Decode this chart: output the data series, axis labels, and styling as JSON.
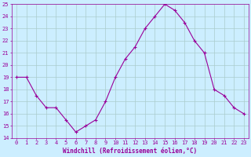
{
  "x": [
    0,
    1,
    2,
    3,
    4,
    5,
    6,
    7,
    8,
    9,
    10,
    11,
    12,
    13,
    14,
    15,
    16,
    17,
    18,
    19,
    20,
    21,
    22,
    23
  ],
  "y": [
    19,
    19,
    17.5,
    16.5,
    16.5,
    15.5,
    14.5,
    15,
    15.5,
    17,
    19,
    20.5,
    21.5,
    23,
    24,
    25,
    24.5,
    23.5,
    22,
    21,
    18,
    17.5,
    16.5,
    16
  ],
  "line_color": "#990099",
  "marker": "+",
  "marker_size": 3,
  "background_color": "#cceeff",
  "grid_color": "#aacccc",
  "xlabel": "Windchill (Refroidissement éolien,°C)",
  "xlabel_color": "#990099",
  "tick_color": "#990099",
  "ylim": [
    14,
    25
  ],
  "yticks": [
    14,
    15,
    16,
    17,
    18,
    19,
    20,
    21,
    22,
    23,
    24,
    25
  ],
  "xticks": [
    0,
    1,
    2,
    3,
    4,
    5,
    6,
    7,
    8,
    9,
    10,
    11,
    12,
    13,
    14,
    15,
    16,
    17,
    18,
    19,
    20,
    21,
    22,
    23
  ],
  "axis_color": "#990099",
  "tick_fontsize": 5.0,
  "xlabel_fontsize": 5.5,
  "linewidth": 0.8,
  "markeredgewidth": 0.8
}
